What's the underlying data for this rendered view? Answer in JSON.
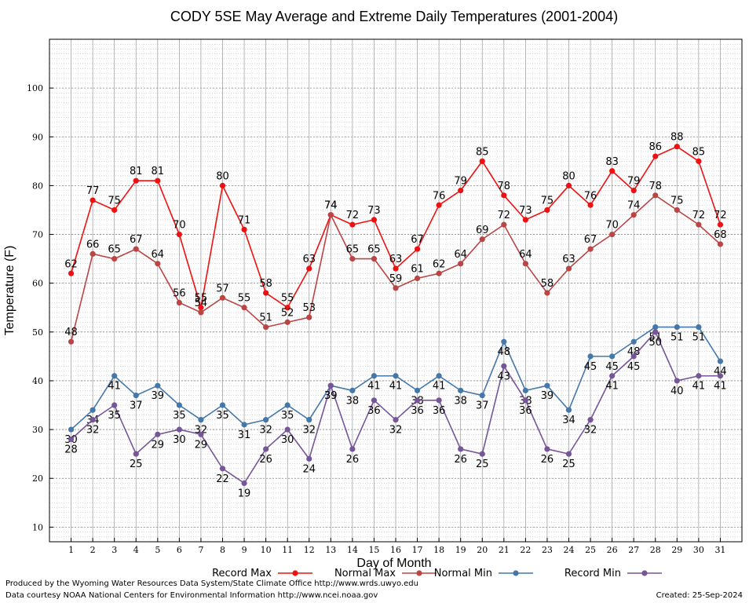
{
  "footer": {
    "produced_by": "Produced by the Wyoming Water Resources Data System/State Climate Office http://www.wrds.uwyo.edu",
    "courtesy": "Data courtesy NOAA National Centers for Environmental Information http://www.ncei.noaa.gov",
    "created": "Created: 25-Sep-2024"
  },
  "chart_data": {
    "type": "line",
    "title": "CODY 5SE May Average and Extreme Daily Temperatures (2001-2004)",
    "xlabel": "Day of Month",
    "ylabel": "Temperature (F)",
    "x": [
      1,
      2,
      3,
      4,
      5,
      6,
      7,
      8,
      9,
      10,
      11,
      12,
      13,
      14,
      15,
      16,
      17,
      18,
      19,
      20,
      21,
      22,
      23,
      24,
      25,
      26,
      27,
      28,
      29,
      30,
      31
    ],
    "xlim": [
      0,
      32
    ],
    "ylim": [
      7,
      110
    ],
    "yticks": [
      10,
      20,
      30,
      40,
      50,
      60,
      70,
      80,
      90,
      100
    ],
    "grid": true,
    "legend_position": "bottom",
    "series": [
      {
        "name": "Record Max",
        "color": "#ee1111",
        "label_pos": "above",
        "values": [
          62,
          77,
          75,
          81,
          81,
          70,
          55,
          80,
          71,
          58,
          55,
          63,
          74,
          72,
          73,
          63,
          67,
          76,
          79,
          85,
          78,
          73,
          75,
          80,
          76,
          83,
          79,
          86,
          88,
          85,
          72
        ]
      },
      {
        "name": "Normal Max",
        "color": "#bb4444",
        "label_pos": "above",
        "values": [
          48,
          66,
          65,
          67,
          64,
          56,
          54,
          57,
          55,
          51,
          52,
          53,
          74,
          65,
          65,
          59,
          61,
          62,
          64,
          69,
          72,
          64,
          58,
          63,
          67,
          70,
          74,
          78,
          75,
          72,
          68
        ]
      },
      {
        "name": "Normal Min",
        "color": "#4477aa",
        "label_pos": "below",
        "values": [
          30,
          34,
          41,
          37,
          39,
          35,
          32,
          35,
          31,
          32,
          35,
          32,
          39,
          38,
          41,
          41,
          38,
          41,
          38,
          37,
          48,
          38,
          39,
          34,
          45,
          45,
          48,
          51,
          51,
          51,
          44
        ]
      },
      {
        "name": "Record Min",
        "color": "#775599",
        "label_pos": "below",
        "values": [
          28,
          32,
          35,
          25,
          29,
          30,
          29,
          22,
          19,
          26,
          30,
          24,
          39,
          26,
          36,
          32,
          36,
          36,
          26,
          25,
          43,
          36,
          26,
          25,
          32,
          41,
          45,
          50,
          40,
          41,
          41
        ]
      }
    ]
  }
}
